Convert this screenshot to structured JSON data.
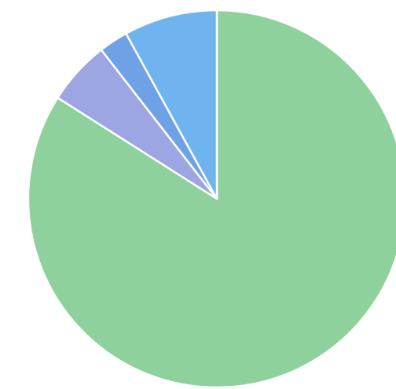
{
  "chart_data": {
    "type": "pie",
    "title": "",
    "start_angle": "12 o'clock",
    "direction": "clockwise",
    "slices": [
      {
        "value": 84,
        "color": "#8fd19c"
      },
      {
        "value": 5.5,
        "color": "#9ea5e3"
      },
      {
        "value": 2.5,
        "color": "#6fa1e6"
      },
      {
        "value": 8,
        "color": "#6fb4ee"
      }
    ]
  }
}
